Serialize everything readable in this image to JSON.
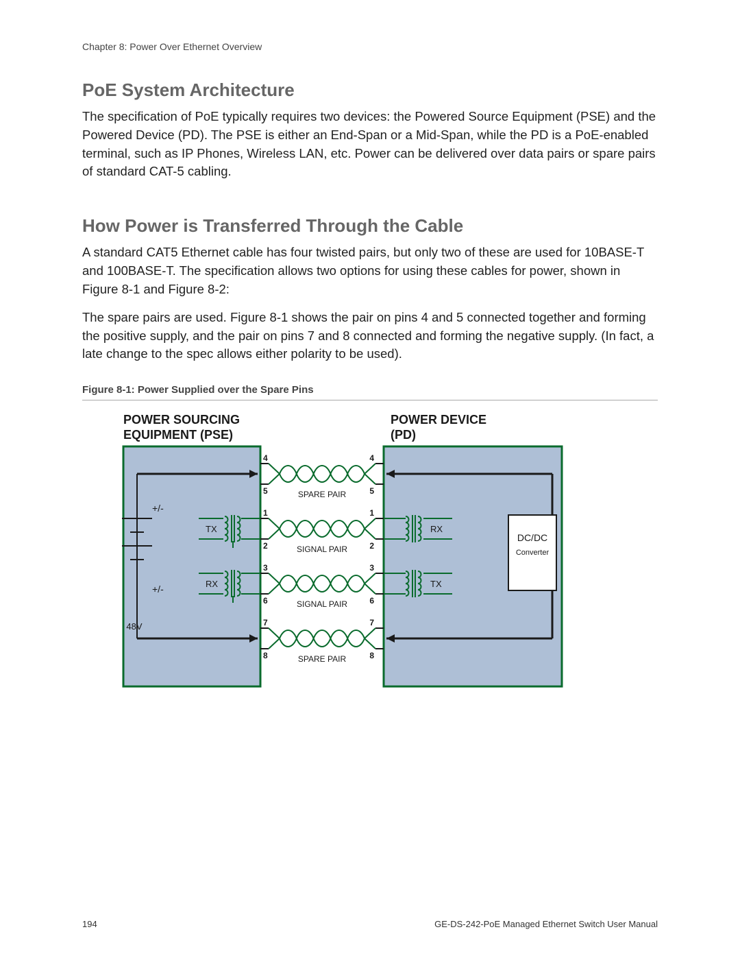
{
  "header": {
    "chapter": "Chapter 8: Power Over Ethernet Overview"
  },
  "sections": {
    "s1_title": "PoE System Architecture",
    "s1_body": "The specification of PoE typically requires two devices: the Powered Source Equipment (PSE) and the Powered Device (PD). The PSE is either an End-Span or a Mid-Span, while the PD is a PoE-enabled terminal, such as IP Phones, Wireless LAN, etc. Power can be delivered over data pairs or spare pairs of standard CAT-5 cabling.",
    "s2_title": "How Power is Transferred Through the Cable",
    "s2_body1": "A standard CAT5 Ethernet cable has four twisted pairs, but only two of these are used for 10BASE-T and 100BASE-T. The specification allows two options for using these cables for power, shown in Figure 8-1 and Figure 8-2:",
    "s2_body2": "The spare pairs are used. Figure 8-1 shows the pair on pins 4 and 5 connected together and forming the positive supply, and the pair on pins 7 and 8 connected and forming the negative supply. (In fact, a late change to the spec allows either polarity to be used)."
  },
  "figure": {
    "caption": "Figure 8-1: Power Supplied over the Spare Pins",
    "left_title_l1": "POWER SOURCING",
    "left_title_l2": "EQUIPMENT (PSE)",
    "right_title_l1": "POWER DEVICE",
    "right_title_l2": "(PD)",
    "labels": {
      "spare_pair": "SPARE PAIR",
      "signal_pair": "SIGNAL PAIR",
      "tx": "TX",
      "rx": "RX",
      "dcdc": "DC/DC",
      "converter": "Converter",
      "v48": "48V",
      "plusminus": "+/-"
    },
    "pins": [
      "4",
      "5",
      "1",
      "2",
      "3",
      "6",
      "7",
      "8"
    ],
    "colors": {
      "box_fill": "#aebfd6",
      "box_stroke": "#0a6b2d",
      "wire_green": "#0a6b2d",
      "arrow_dark": "#1a1a1a",
      "text_dark": "#1a1a1a",
      "converter_fill": "#ffffff"
    }
  },
  "footer": {
    "page": "194",
    "manual": "GE-DS-242-PoE Managed Ethernet Switch User Manual"
  }
}
